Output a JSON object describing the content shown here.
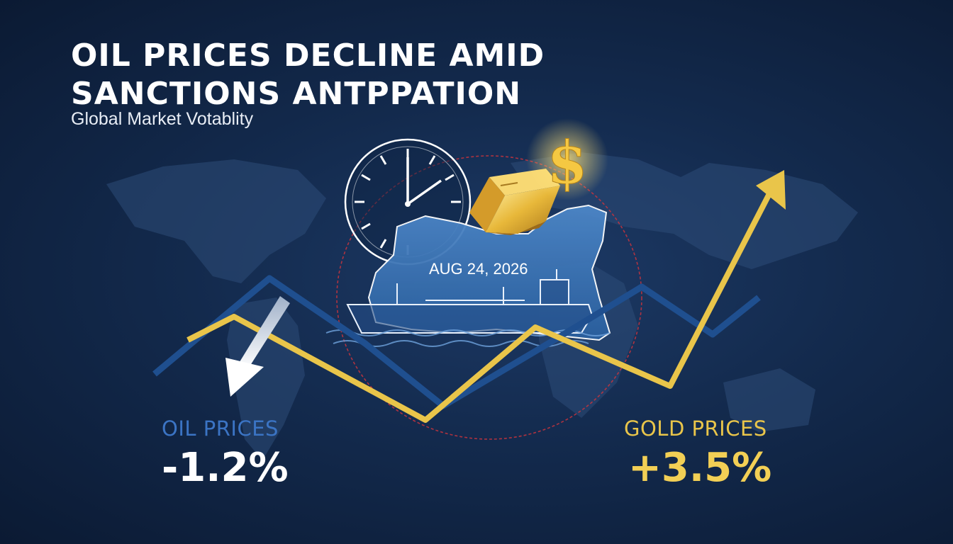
{
  "headline": {
    "line1": "OIL PRICES DECLINE AMID",
    "line2": "SANCTIONS ANTPPATION"
  },
  "subtitle": "Global Market Votablity",
  "date_label": "AUG 24, 2026",
  "oil": {
    "label": "OIL PRICES",
    "change": "-1.2%",
    "color": "#1f4f8f"
  },
  "gold": {
    "label": "GOLD PRICES",
    "change": "+3.5%",
    "color": "#e9c54a"
  },
  "icons": [
    "world-map-icon",
    "clock-icon",
    "gold-bar-icon",
    "dollar-sign-icon",
    "oil-tanker-icon",
    "down-arrow-icon",
    "up-arrow-icon"
  ],
  "colors": {
    "background": "#132a4d",
    "accent_blue": "#3b74c4",
    "accent_gold": "#f2cf55",
    "ring_red": "#c9343d"
  }
}
